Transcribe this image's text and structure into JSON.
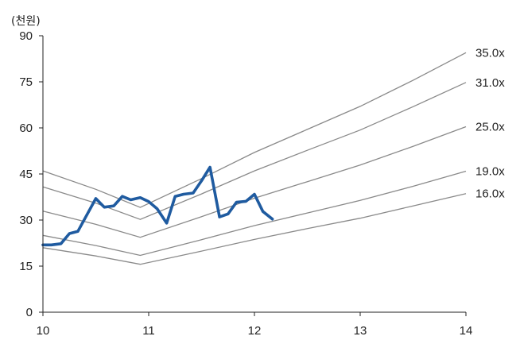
{
  "chart_data": {
    "type": "line",
    "ylabel": "(천원)",
    "xlim": [
      10,
      14
    ],
    "ylim": [
      0,
      90
    ],
    "x_ticks": [
      10,
      11,
      12,
      13,
      14
    ],
    "y_ticks": [
      0,
      15,
      30,
      45,
      60,
      75,
      90
    ],
    "grid": false,
    "legend": "none",
    "colors": {
      "price": "#1f5ba0",
      "band": "#8a8a8a",
      "axis": "#222222"
    },
    "price": {
      "x": [
        10.0,
        10.08,
        10.17,
        10.25,
        10.33,
        10.42,
        10.5,
        10.58,
        10.67,
        10.75,
        10.83,
        10.92,
        11.0,
        11.08,
        11.17,
        11.25,
        11.33,
        11.42,
        11.5,
        11.58,
        11.67,
        11.75,
        11.83,
        11.92,
        12.0,
        12.08,
        12.17
      ],
      "values": [
        21.9,
        21.9,
        22.3,
        25.6,
        26.3,
        32.0,
        37.0,
        34.2,
        34.6,
        37.7,
        36.6,
        37.3,
        36.0,
        33.7,
        29.0,
        37.7,
        38.4,
        38.8,
        42.8,
        47.2,
        31.0,
        32.0,
        35.8,
        36.1,
        38.4,
        32.8,
        30.3
      ]
    },
    "bands": [
      {
        "name": "35.0x",
        "x": [
          10.0,
          10.5,
          10.92,
          11.5,
          12.0,
          12.5,
          13.0,
          13.5,
          14.0
        ],
        "values": [
          46.0,
          40.0,
          34.1,
          43.5,
          52.0,
          59.5,
          67.0,
          75.5,
          84.5
        ]
      },
      {
        "name": "31.0x",
        "x": [
          10.0,
          10.5,
          10.92,
          11.5,
          12.0,
          12.5,
          13.0,
          13.5,
          14.0
        ],
        "values": [
          40.8,
          35.5,
          30.2,
          38.5,
          46.0,
          52.7,
          59.3,
          66.9,
          74.8
        ]
      },
      {
        "name": "25.0x",
        "x": [
          10.0,
          10.5,
          10.92,
          11.5,
          12.0,
          12.5,
          13.0,
          13.5,
          14.0
        ],
        "values": [
          32.9,
          28.6,
          24.4,
          31.1,
          37.1,
          42.5,
          47.9,
          54.0,
          60.4
        ]
      },
      {
        "name": "19.0x",
        "x": [
          10.0,
          10.5,
          10.92,
          11.5,
          12.0,
          12.5,
          13.0,
          13.5,
          14.0
        ],
        "values": [
          25.0,
          21.7,
          18.5,
          23.6,
          28.2,
          32.3,
          36.4,
          41.0,
          45.9
        ]
      },
      {
        "name": "16.0x",
        "x": [
          10.0,
          10.5,
          10.92,
          11.5,
          12.0,
          12.5,
          13.0,
          13.5,
          14.0
        ],
        "values": [
          21.0,
          18.3,
          15.6,
          19.9,
          23.7,
          27.2,
          30.6,
          34.6,
          38.6
        ]
      }
    ]
  }
}
